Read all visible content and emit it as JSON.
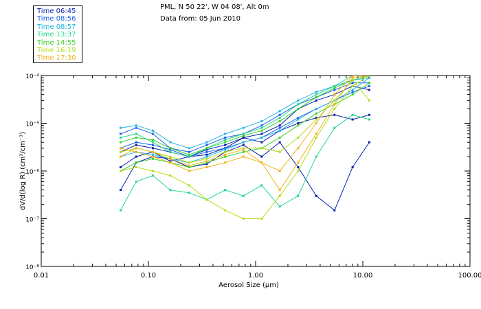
{
  "header": {
    "station": "PML, N 50 22', W 04 08', Alt 0m",
    "date_line": "Data from: 05 Jun 2010"
  },
  "legend": [
    {
      "label": "Time 06:45",
      "color": "#0a1fb0"
    },
    {
      "label": "Time 08:56",
      "color": "#1c63e8"
    },
    {
      "label": "Time 08:57",
      "color": "#22b4e8"
    },
    {
      "label": "Time 13:37",
      "color": "#22d98a"
    },
    {
      "label": "Time 14:55",
      "color": "#38d428"
    },
    {
      "label": "Time 16:19",
      "color": "#b4dc1c"
    },
    {
      "label": "Time 17:30",
      "color": "#f0b41c"
    }
  ],
  "chart_data": {
    "type": "line",
    "xlabel": "Aerosol Size (μm)",
    "ylabel": "dV/d(log R) (cm³/cm⁻³)",
    "x_scale": "log",
    "y_scale": "log",
    "xlim": [
      0.01,
      100
    ],
    "ylim": [
      1e-08,
      0.0001
    ],
    "x_tick_labels": [
      "0.01",
      "0.10",
      "1.00",
      "10.00",
      "100.00"
    ],
    "y_tick_labels": [
      "10⁻⁸",
      "10⁻⁷",
      "10⁻⁶",
      "10⁻⁵",
      "10⁻⁴"
    ],
    "x": [
      0.055,
      0.077,
      0.11,
      0.16,
      0.24,
      0.35,
      0.52,
      0.77,
      1.14,
      1.68,
      2.49,
      3.68,
      5.44,
      8.03,
      11.5
    ],
    "series": [
      {
        "color": "#0a1fb0",
        "values": [
          4e-07,
          1.5e-06,
          2e-06,
          1.8e-06,
          1.2e-06,
          1.4e-06,
          2.5e-06,
          3.5e-06,
          2e-06,
          4e-06,
          1.2e-06,
          3e-07,
          1.5e-07,
          1.2e-06,
          4e-06
        ]
      },
      {
        "color": "#0a1fb0",
        "values": [
          1.2e-06,
          2e-06,
          2.5e-06,
          1.6e-06,
          2e-06,
          2.2e-06,
          3e-06,
          5e-06,
          4e-06,
          7e-06,
          1e-05,
          1.3e-05,
          1.5e-05,
          1.2e-05,
          1.5e-05
        ]
      },
      {
        "color": "#0a1fb0",
        "values": [
          2.5e-06,
          3.5e-06,
          3e-06,
          2.5e-06,
          2e-06,
          2.8e-06,
          3.5e-06,
          5e-06,
          6e-06,
          9e-06,
          2e-05,
          3e-05,
          4e-05,
          6e-05,
          5e-05
        ]
      },
      {
        "color": "#1c63e8",
        "values": [
          6e-06,
          8e-06,
          6e-06,
          3e-06,
          2.5e-06,
          3.5e-06,
          5e-06,
          6e-06,
          9e-06,
          1.5e-05,
          2.5e-05,
          3.5e-05,
          5e-05,
          7e-05,
          7e-05
        ]
      },
      {
        "color": "#1c63e8",
        "values": [
          3e-06,
          4e-06,
          3.5e-06,
          2.8e-06,
          2e-06,
          2.5e-06,
          3e-06,
          4e-06,
          5e-06,
          8e-06,
          1.3e-05,
          2e-05,
          3e-05,
          4.5e-05,
          6e-05
        ]
      },
      {
        "color": "#22b4e8",
        "values": [
          8e-06,
          9e-06,
          7e-06,
          4e-06,
          3e-06,
          4e-06,
          6e-06,
          8e-06,
          1.1e-05,
          1.8e-05,
          3e-05,
          4.5e-05,
          6e-05,
          8e-05,
          9e-05
        ]
      },
      {
        "color": "#22b4e8",
        "values": [
          2e-06,
          2.5e-06,
          2.2e-06,
          1.8e-06,
          1.5e-06,
          2e-06,
          2.8e-06,
          4e-06,
          5e-06,
          7e-06,
          1.2e-05,
          2e-05,
          3e-05,
          5e-05,
          9e-05
        ]
      },
      {
        "color": "#22d98a",
        "values": [
          1.5e-07,
          6e-07,
          8e-07,
          4e-07,
          3.5e-07,
          2.5e-07,
          4e-07,
          3e-07,
          5e-07,
          1.8e-07,
          3e-07,
          2e-06,
          8e-06,
          1.5e-05,
          1.2e-05
        ]
      },
      {
        "color": "#22d98a",
        "values": [
          5e-06,
          6e-06,
          4e-06,
          2.5e-06,
          2e-06,
          3e-06,
          4.5e-06,
          6e-06,
          8e-06,
          1.3e-05,
          2.5e-05,
          4e-05,
          6e-05,
          0.0001,
          0.0001
        ]
      },
      {
        "color": "#38d428",
        "values": [
          4e-06,
          5e-06,
          4.5e-06,
          3e-06,
          2.2e-06,
          3e-06,
          4e-06,
          5.5e-06,
          7e-06,
          1.1e-05,
          2e-05,
          3.5e-05,
          5.5e-05,
          8e-05,
          0.0001
        ]
      },
      {
        "color": "#38d428",
        "values": [
          1e-06,
          1.5e-06,
          1.8e-06,
          1.5e-06,
          1.2e-06,
          1.5e-06,
          2e-06,
          2.5e-06,
          3e-06,
          5e-06,
          9e-06,
          1.6e-05,
          2.5e-05,
          4e-05,
          7e-05
        ]
      },
      {
        "color": "#b4dc1c",
        "values": [
          2.5e-06,
          3e-06,
          2.5e-06,
          2e-06,
          1.5e-06,
          1.8e-06,
          2.5e-06,
          3e-06,
          3e-06,
          2.5e-06,
          5e-06,
          1.2e-05,
          3e-05,
          8e-05,
          3e-05
        ]
      },
      {
        "color": "#b4dc1c",
        "values": [
          1e-06,
          1.2e-06,
          1e-06,
          8e-07,
          5e-07,
          2.5e-07,
          1.5e-07,
          1e-07,
          1e-07,
          3e-07,
          1e-06,
          5e-06,
          2e-05,
          6e-05,
          0.0001
        ]
      },
      {
        "color": "#f0b41c",
        "values": [
          3e-06,
          2.5e-06,
          2e-06,
          1.5e-06,
          1e-06,
          1.2e-06,
          1.5e-06,
          2e-06,
          1.5e-06,
          4e-07,
          1.5e-06,
          6e-06,
          2.5e-05,
          9e-05,
          0.0001
        ]
      },
      {
        "color": "#f0b41c",
        "values": [
          2e-06,
          3e-06,
          2.5e-06,
          1.8e-06,
          1.3e-06,
          1.6e-06,
          2.2e-06,
          2.8e-06,
          1.5e-06,
          1e-06,
          3e-06,
          1e-05,
          4e-05,
          0.0001,
          0.0001
        ]
      }
    ]
  }
}
